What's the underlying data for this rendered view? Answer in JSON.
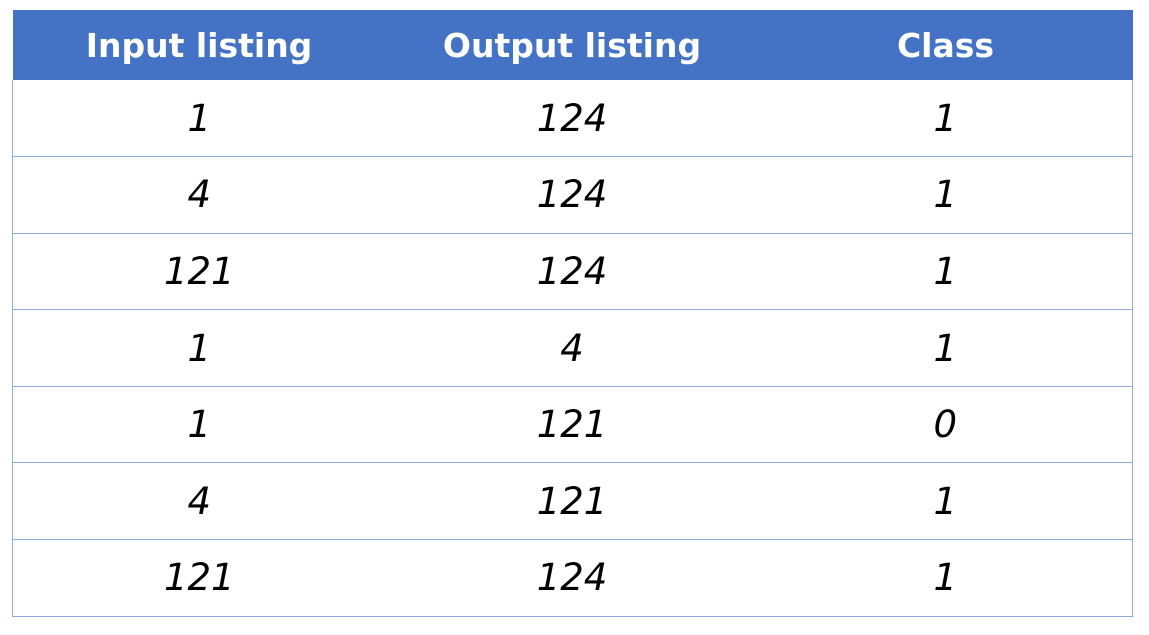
{
  "table": {
    "headers": [
      "Input listing",
      "Output listing",
      "Class"
    ],
    "rows": [
      [
        "1",
        "124",
        "1"
      ],
      [
        "4",
        "124",
        "1"
      ],
      [
        "121",
        "124",
        "1"
      ],
      [
        "1",
        "4",
        "1"
      ],
      [
        "1",
        "121",
        "0"
      ],
      [
        "4",
        "121",
        "1"
      ],
      [
        "121",
        "124",
        "1"
      ]
    ],
    "colors": {
      "header_background": "#4472c4",
      "header_text": "#ffffff",
      "row_border": "#8faadc"
    }
  }
}
